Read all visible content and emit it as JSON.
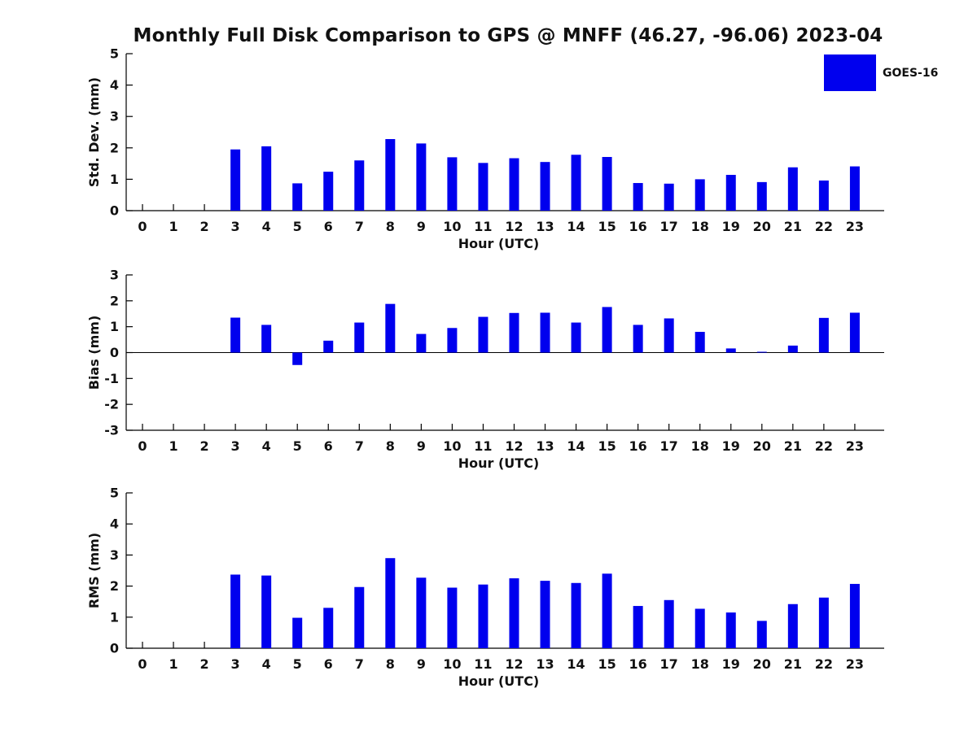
{
  "title": "Monthly Full Disk Comparison to GPS @ MNFF (46.27, -96.06) 2023-04",
  "legend": {
    "label": "GOES-16",
    "color": "#0000ee"
  },
  "colors": {
    "bar": "#0000ee",
    "axis": "#000000",
    "text": "#111111"
  },
  "chart_data": [
    {
      "id": "stddev",
      "type": "bar",
      "title": "",
      "ylabel": "Std. Dev. (mm)",
      "xlabel": "Hour (UTC)",
      "ylim": [
        0,
        5
      ],
      "yticks": [
        0,
        1,
        2,
        3,
        4,
        5
      ],
      "grid": false,
      "legend_entry": "GOES-16",
      "categories": [
        "0",
        "1",
        "2",
        "3",
        "4",
        "5",
        "6",
        "7",
        "8",
        "9",
        "10",
        "11",
        "12",
        "13",
        "14",
        "15",
        "16",
        "17",
        "18",
        "19",
        "20",
        "21",
        "22",
        "23"
      ],
      "values": [
        null,
        null,
        null,
        1.95,
        2.05,
        0.87,
        1.24,
        1.6,
        2.28,
        2.14,
        1.7,
        1.52,
        1.67,
        1.55,
        1.78,
        1.71,
        0.88,
        0.86,
        1.0,
        1.14,
        0.91,
        1.38,
        0.96,
        1.41
      ]
    },
    {
      "id": "bias",
      "type": "bar",
      "title": "",
      "ylabel": "Bias (mm)",
      "xlabel": "Hour (UTC)",
      "ylim": [
        -3,
        3
      ],
      "yticks": [
        -3,
        -2,
        -1,
        0,
        1,
        2,
        3
      ],
      "zero_line": true,
      "grid": false,
      "legend_entry": "GOES-16",
      "categories": [
        "0",
        "1",
        "2",
        "3",
        "4",
        "5",
        "6",
        "7",
        "8",
        "9",
        "10",
        "11",
        "12",
        "13",
        "14",
        "15",
        "16",
        "17",
        "18",
        "19",
        "20",
        "21",
        "22",
        "23"
      ],
      "values": [
        null,
        null,
        null,
        1.35,
        1.07,
        -0.48,
        0.46,
        1.16,
        1.88,
        0.72,
        0.95,
        1.38,
        1.53,
        1.54,
        1.16,
        1.76,
        1.07,
        1.32,
        0.8,
        0.16,
        0.03,
        0.27,
        1.34,
        1.54
      ]
    },
    {
      "id": "rms",
      "type": "bar",
      "title": "",
      "ylabel": "RMS (mm)",
      "xlabel": "Hour (UTC)",
      "ylim": [
        0,
        5
      ],
      "yticks": [
        0,
        1,
        2,
        3,
        4,
        5
      ],
      "grid": false,
      "legend_entry": "GOES-16",
      "categories": [
        "0",
        "1",
        "2",
        "3",
        "4",
        "5",
        "6",
        "7",
        "8",
        "9",
        "10",
        "11",
        "12",
        "13",
        "14",
        "15",
        "16",
        "17",
        "18",
        "19",
        "20",
        "21",
        "22",
        "23"
      ],
      "values": [
        null,
        null,
        null,
        2.37,
        2.34,
        0.98,
        1.3,
        1.97,
        2.9,
        2.27,
        1.95,
        2.05,
        2.25,
        2.17,
        2.1,
        2.4,
        1.36,
        1.55,
        1.27,
        1.15,
        0.88,
        1.42,
        1.63,
        2.07
      ]
    }
  ]
}
